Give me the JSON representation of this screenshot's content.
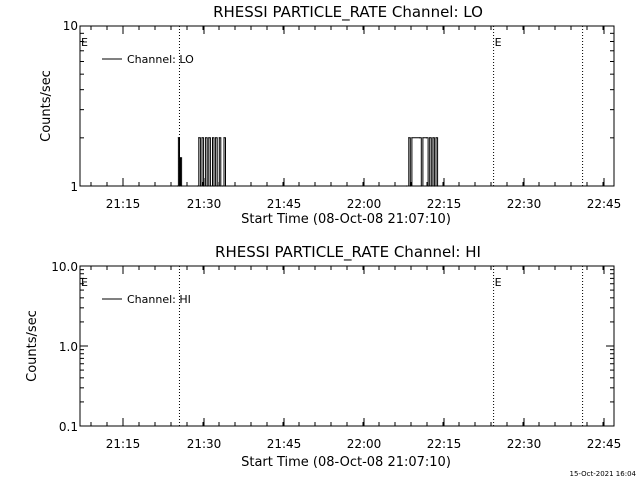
{
  "figure": {
    "timestamp": "15-Oct-2021 16:04",
    "colors": {
      "background": "#ffffff",
      "foreground": "#000000"
    }
  },
  "chart_data": [
    {
      "type": "line",
      "title": "RHESSI PARTICLE_RATE Channel: LO",
      "xlabel": "Start Time (08-Oct-08 21:07:10)",
      "ylabel": "Counts/sec",
      "y_scale": "log",
      "ylim": [
        1,
        10
      ],
      "y_tick_labels": [
        "1",
        "10"
      ],
      "x_ticks": [
        "21:15",
        "21:30",
        "21:45",
        "22:00",
        "22:15",
        "22:30",
        "22:45"
      ],
      "x_range_minutes": [
        0,
        102
      ],
      "grid": false,
      "legend_position": "top-left",
      "legend": [
        "Channel: LO"
      ],
      "vlines": [
        {
          "label": "E",
          "t_minutes": 19
        },
        {
          "label": "E",
          "t_minutes": 79
        },
        {
          "label": "",
          "t_minutes": 96
        }
      ],
      "series": [
        {
          "name": "Channel: LO",
          "points": [
            [
              18.6,
              1
            ],
            [
              18.8,
              2
            ],
            [
              19.0,
              1
            ],
            [
              19.2,
              1.5
            ],
            [
              19.4,
              1
            ],
            [
              22.4,
              1
            ],
            [
              22.7,
              2
            ],
            [
              23.0,
              1
            ],
            [
              23.3,
              2
            ],
            [
              23.6,
              1
            ],
            [
              24.0,
              2
            ],
            [
              24.3,
              1
            ],
            [
              24.6,
              2
            ],
            [
              24.9,
              1
            ],
            [
              25.3,
              2
            ],
            [
              25.6,
              1
            ],
            [
              25.9,
              2
            ],
            [
              26.2,
              1
            ],
            [
              26.6,
              2
            ],
            [
              26.9,
              1
            ],
            [
              27.2,
              1
            ],
            [
              27.5,
              2
            ],
            [
              27.8,
              1
            ],
            [
              62.4,
              1
            ],
            [
              62.8,
              2
            ],
            [
              63.1,
              1
            ],
            [
              63.4,
              2
            ],
            [
              64.9,
              2
            ],
            [
              65.2,
              1
            ],
            [
              65.5,
              2
            ],
            [
              66.2,
              2
            ],
            [
              66.5,
              1
            ],
            [
              66.8,
              2
            ],
            [
              67.1,
              1
            ],
            [
              67.4,
              2
            ],
            [
              67.7,
              1
            ],
            [
              68.0,
              2
            ],
            [
              68.3,
              1
            ]
          ]
        }
      ]
    },
    {
      "type": "line",
      "title": "RHESSI PARTICLE_RATE Channel: HI",
      "xlabel": "Start Time (08-Oct-08 21:07:10)",
      "ylabel": "Counts/sec",
      "y_scale": "log",
      "ylim": [
        0.1,
        10
      ],
      "y_tick_labels": [
        "0.1",
        "1.0",
        "10.0"
      ],
      "x_ticks": [
        "21:15",
        "21:30",
        "21:45",
        "22:00",
        "22:15",
        "22:30",
        "22:45"
      ],
      "x_range_minutes": [
        0,
        102
      ],
      "grid": false,
      "legend_position": "top-left",
      "legend": [
        "Channel: HI"
      ],
      "vlines": [
        {
          "label": "E",
          "t_minutes": 19
        },
        {
          "label": "E",
          "t_minutes": 79
        },
        {
          "label": "",
          "t_minutes": 96
        }
      ],
      "series": [
        {
          "name": "Channel: HI",
          "points": []
        }
      ]
    }
  ]
}
